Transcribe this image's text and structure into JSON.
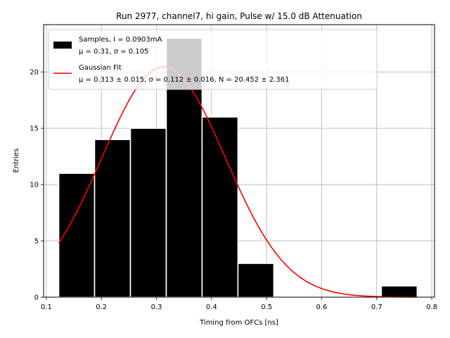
{
  "chart_data": {
    "type": "histogram",
    "title": "Run 2977, channel7, hi gain, Pulse w/ 15.0 dB Attenuation",
    "xlabel": "Timing from OFCs [ns]",
    "ylabel": "Entries",
    "xlim": [
      0.095,
      0.805
    ],
    "ylim": [
      0,
      24.2
    ],
    "xticks": [
      0.1,
      0.2,
      0.3,
      0.4,
      0.5,
      0.6,
      0.7,
      0.8
    ],
    "xtick_labels": [
      "0.1",
      "0.2",
      "0.3",
      "0.4",
      "0.5",
      "0.6",
      "0.7",
      "0.8"
    ],
    "yticks": [
      0,
      5,
      10,
      15,
      20
    ],
    "ytick_labels": [
      "0",
      "5",
      "10",
      "15",
      "20"
    ],
    "grid": true,
    "legend_position": "top-left",
    "histogram": {
      "name": "Samples",
      "bin_edges": [
        0.1225,
        0.1876,
        0.2527,
        0.3178,
        0.3829,
        0.448,
        0.5131,
        0.5782,
        0.6433,
        0.7084,
        0.7735
      ],
      "counts": [
        11,
        14,
        15,
        23,
        16,
        3,
        0,
        0,
        0,
        1
      ],
      "color": "#000000",
      "edge_color": "#ffffff"
    },
    "fit": {
      "name": "Gaussian Fit",
      "mu": 0.313,
      "sigma": 0.112,
      "N": 20.452,
      "x_range": [
        0.1225,
        0.7735
      ],
      "color": "#ff0000"
    },
    "legend": [
      {
        "kind": "patch",
        "color": "#000000",
        "line1": "Samples, I = 0.0903mA",
        "line2": "μ = 0.31, σ = 0.105"
      },
      {
        "kind": "line",
        "color": "#ff0000",
        "line1": "Gaussian Fit",
        "line2": "μ = 0.313 ± 0.015, σ = 0.112 ± 0.016, N = 20.452 ± 2.361"
      }
    ]
  }
}
